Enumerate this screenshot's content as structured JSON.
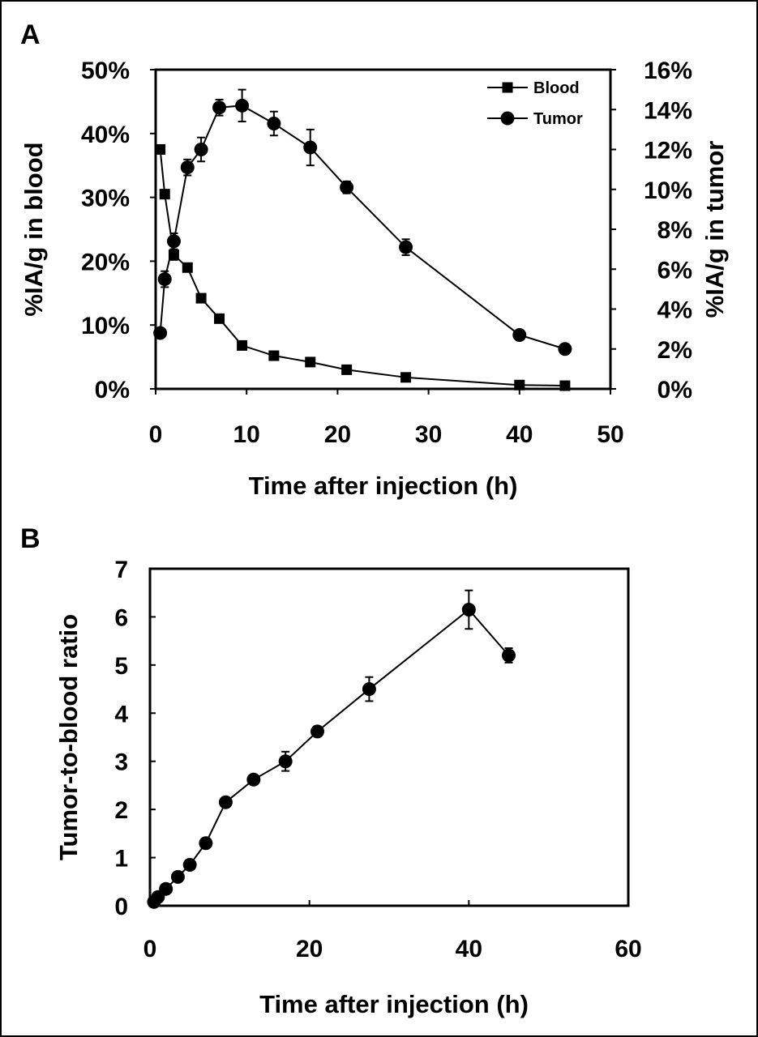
{
  "chart_data": [
    {
      "panel": "A",
      "type": "line",
      "xlabel": "Time after injection (h)",
      "ylabel": "%IA/g in blood",
      "ylabel_right": "%IA/g in tumor",
      "xlim": [
        0,
        50
      ],
      "ylim": [
        0,
        50
      ],
      "ylim_right": [
        0,
        16
      ],
      "x_ticks": [
        "0",
        "10",
        "20",
        "30",
        "40",
        "50"
      ],
      "y_ticks": [
        "0%",
        "10%",
        "20%",
        "30%",
        "40%",
        "50%"
      ],
      "y_ticks_right": [
        "0%",
        "2%",
        "4%",
        "6%",
        "8%",
        "10%",
        "12%",
        "14%",
        "16%"
      ],
      "grid": false,
      "legend_position": "top-right",
      "series": [
        {
          "name": "Blood",
          "axis": "left",
          "marker": "square",
          "x": [
            0.5,
            1,
            2,
            3.5,
            5,
            7,
            9.5,
            13,
            17,
            21,
            27.5,
            40,
            45
          ],
          "y": [
            37.5,
            30.5,
            21,
            19,
            14.2,
            11,
            6.8,
            5.2,
            4.2,
            3,
            1.8,
            0.6,
            0.5
          ],
          "err": [
            0,
            0,
            0.8,
            0,
            0,
            0,
            0,
            0,
            0,
            0,
            0,
            0,
            0
          ]
        },
        {
          "name": "Tumor",
          "axis": "right",
          "marker": "circle",
          "x": [
            0.5,
            1,
            2,
            3.5,
            5,
            7,
            9.5,
            13,
            17,
            21,
            27.5,
            40,
            45
          ],
          "y": [
            2.8,
            5.5,
            7.4,
            11.1,
            12,
            14.1,
            14.2,
            13.3,
            12.1,
            10.1,
            7.1,
            2.7,
            2
          ],
          "err": [
            0,
            0.4,
            0.4,
            0.4,
            0.6,
            0.4,
            0.8,
            0.6,
            0.9,
            0.3,
            0.4,
            0,
            0
          ]
        }
      ]
    },
    {
      "panel": "B",
      "type": "line",
      "xlabel": "Time after injection (h)",
      "ylabel": "Tumor-to-blood ratio",
      "xlim": [
        0,
        60
      ],
      "ylim": [
        0,
        7
      ],
      "x_ticks": [
        "0",
        "20",
        "40",
        "60"
      ],
      "y_ticks": [
        "0",
        "1",
        "2",
        "3",
        "4",
        "5",
        "6",
        "7"
      ],
      "grid": false,
      "series": [
        {
          "marker": "circle",
          "x": [
            0.5,
            1,
            2,
            3.5,
            5,
            7,
            9.5,
            13,
            17,
            21,
            27.5,
            40,
            45
          ],
          "y": [
            0.08,
            0.18,
            0.35,
            0.6,
            0.85,
            1.3,
            2.15,
            2.62,
            3,
            3.62,
            4.5,
            6.15,
            5.2
          ],
          "err": [
            0,
            0,
            0,
            0,
            0,
            0,
            0,
            0,
            0.2,
            0,
            0.25,
            0.4,
            0.15
          ]
        }
      ]
    }
  ]
}
